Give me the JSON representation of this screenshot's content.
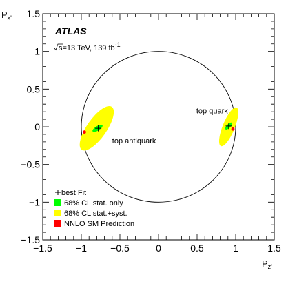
{
  "chart_data": {
    "type": "scatter",
    "title": "",
    "xlabel": {
      "main": "P",
      "sub": "z'"
    },
    "ylabel": {
      "main": "P",
      "sub": "x'"
    },
    "xlim": [
      -1.5,
      1.5
    ],
    "ylim": [
      -1.5,
      1.5
    ],
    "x_ticks": [
      -1.5,
      -1,
      -0.5,
      0,
      0.5,
      1,
      1.5
    ],
    "y_ticks": [
      -1.5,
      -1,
      -0.5,
      0,
      0.5,
      1,
      1.5
    ],
    "x_tick_labels": [
      "−1.5",
      "−1",
      "−0.5",
      "0",
      "0.5",
      "1",
      "1.5"
    ],
    "y_tick_labels": [
      "−1.5",
      "−1",
      "−0.5",
      "0",
      "0.5",
      "1",
      "1.5"
    ],
    "grid": false,
    "unit_circle": {
      "center": [
        0,
        0
      ],
      "radius": 1
    },
    "experiment": "ATLAS",
    "energy_label": {
      "sqrt": "s",
      "text": "=13 TeV, 139 fb",
      "sup": "-1"
    },
    "groups": [
      {
        "label": "top antiquark",
        "label_pos": [
          -0.6,
          -0.22
        ],
        "best_fit": [
          -0.78,
          -0.02
        ],
        "ellipse_stat": {
          "center": [
            -0.79,
            -0.02
          ],
          "semi_axes": [
            0.075,
            0.03
          ],
          "angle_deg": 32
        },
        "ellipse_total": {
          "center": [
            -0.8,
            -0.02
          ],
          "semi_axes": [
            0.34,
            0.13
          ],
          "angle_deg": 55
        },
        "sm_prediction": [
          -0.96,
          -0.07
        ]
      },
      {
        "label": "top quark",
        "label_pos": [
          0.49,
          0.18
        ],
        "best_fit": [
          0.91,
          0.01
        ],
        "ellipse_stat": {
          "center": [
            0.91,
            0.01
          ],
          "semi_axes": [
            0.06,
            0.025
          ],
          "angle_deg": 45
        },
        "ellipse_total": {
          "center": [
            0.91,
            0.0
          ],
          "semi_axes": [
            0.27,
            0.08
          ],
          "angle_deg": 68
        },
        "sm_prediction": [
          0.965,
          -0.03
        ]
      }
    ],
    "legend": {
      "placement": "bottom-left",
      "entries": [
        {
          "label": "best Fit",
          "marker": "cross",
          "color": "#000000"
        },
        {
          "label": "68% CL stat. only",
          "marker": "box",
          "color": "#00ff00"
        },
        {
          "label": "68% CL stat.+syst.",
          "marker": "box",
          "color": "#ffff00"
        },
        {
          "label": "NNLO SM Prediction",
          "marker": "box",
          "color": "#ff0000"
        }
      ]
    },
    "colors": {
      "stat": "#00ff00",
      "total": "#ffff00",
      "sm": "#ff0000",
      "best_fit": "#000000",
      "circle": "#000000"
    }
  }
}
